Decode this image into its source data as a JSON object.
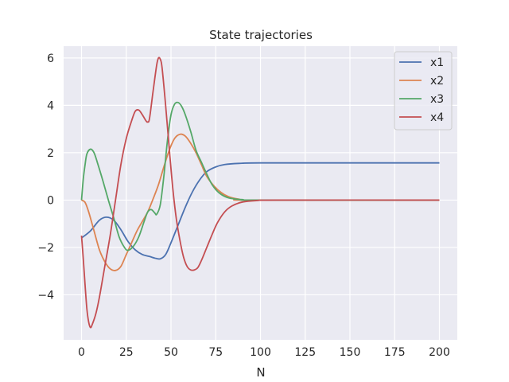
{
  "chart_data": {
    "type": "line",
    "title": "State trajectories",
    "xlabel": "N",
    "ylabel": "",
    "xlim": [
      -10,
      210
    ],
    "ylim": [
      -5.9,
      6.5
    ],
    "xticks": [
      0,
      25,
      50,
      75,
      100,
      125,
      150,
      175,
      200
    ],
    "yticks": [
      -4,
      -2,
      0,
      2,
      4,
      6
    ],
    "ytick_labels": [
      "−4",
      "−2",
      "0",
      "2",
      "4",
      "6"
    ],
    "grid": true,
    "background": "#eaeaf2",
    "legend_position": "top-right",
    "series": [
      {
        "name": "x1",
        "color": "#4c72b0",
        "points": [
          [
            0,
            -1.6
          ],
          [
            5,
            -1.3
          ],
          [
            10,
            -0.85
          ],
          [
            14,
            -0.72
          ],
          [
            18,
            -0.85
          ],
          [
            22,
            -1.25
          ],
          [
            26,
            -1.75
          ],
          [
            30,
            -2.1
          ],
          [
            34,
            -2.3
          ],
          [
            38,
            -2.38
          ],
          [
            41,
            -2.45
          ],
          [
            44,
            -2.48
          ],
          [
            47,
            -2.3
          ],
          [
            50,
            -1.8
          ],
          [
            54,
            -1.05
          ],
          [
            58,
            -0.3
          ],
          [
            62,
            0.35
          ],
          [
            66,
            0.85
          ],
          [
            70,
            1.2
          ],
          [
            75,
            1.4
          ],
          [
            80,
            1.5
          ],
          [
            88,
            1.55
          ],
          [
            100,
            1.57
          ],
          [
            150,
            1.57
          ],
          [
            200,
            1.57
          ]
        ]
      },
      {
        "name": "x2",
        "color": "#dd8452",
        "points": [
          [
            0,
            0.0
          ],
          [
            2,
            -0.1
          ],
          [
            4,
            -0.5
          ],
          [
            7,
            -1.3
          ],
          [
            10,
            -2.1
          ],
          [
            13,
            -2.6
          ],
          [
            16,
            -2.9
          ],
          [
            19,
            -2.97
          ],
          [
            22,
            -2.8
          ],
          [
            25,
            -2.3
          ],
          [
            28,
            -1.8
          ],
          [
            31,
            -1.3
          ],
          [
            34,
            -0.9
          ],
          [
            37,
            -0.5
          ],
          [
            40,
            0.05
          ],
          [
            43,
            0.65
          ],
          [
            46,
            1.4
          ],
          [
            49,
            2.1
          ],
          [
            52,
            2.6
          ],
          [
            55,
            2.78
          ],
          [
            58,
            2.7
          ],
          [
            61,
            2.4
          ],
          [
            64,
            2.0
          ],
          [
            67,
            1.5
          ],
          [
            70,
            1.0
          ],
          [
            74,
            0.6
          ],
          [
            78,
            0.32
          ],
          [
            82,
            0.15
          ],
          [
            88,
            0.04
          ],
          [
            95,
            0.0
          ],
          [
            200,
            0.0
          ]
        ]
      },
      {
        "name": "x3",
        "color": "#55a868",
        "points": [
          [
            0,
            0.0
          ],
          [
            1,
            0.9
          ],
          [
            2,
            1.5
          ],
          [
            3,
            1.95
          ],
          [
            5,
            2.15
          ],
          [
            7,
            2.0
          ],
          [
            9,
            1.55
          ],
          [
            12,
            0.8
          ],
          [
            15,
            0.0
          ],
          [
            18,
            -0.75
          ],
          [
            21,
            -1.55
          ],
          [
            24,
            -2.0
          ],
          [
            26,
            -2.12
          ],
          [
            29,
            -1.95
          ],
          [
            32,
            -1.55
          ],
          [
            35,
            -0.9
          ],
          [
            37,
            -0.5
          ],
          [
            39,
            -0.4
          ],
          [
            41,
            -0.55
          ],
          [
            42,
            -0.6
          ],
          [
            44,
            -0.2
          ],
          [
            46,
            1.0
          ],
          [
            48,
            2.5
          ],
          [
            50,
            3.6
          ],
          [
            52,
            4.05
          ],
          [
            54,
            4.12
          ],
          [
            56,
            3.95
          ],
          [
            58,
            3.6
          ],
          [
            61,
            2.9
          ],
          [
            64,
            2.1
          ],
          [
            67,
            1.6
          ],
          [
            70,
            1.1
          ],
          [
            73,
            0.65
          ],
          [
            77,
            0.3
          ],
          [
            82,
            0.1
          ],
          [
            90,
            0.02
          ],
          [
            100,
            0.0
          ],
          [
            200,
            0.0
          ]
        ]
      },
      {
        "name": "x4",
        "color": "#c44e52",
        "points": [
          [
            0,
            -1.5
          ],
          [
            1,
            -2.5
          ],
          [
            2,
            -3.6
          ],
          [
            3,
            -4.6
          ],
          [
            4,
            -5.15
          ],
          [
            5,
            -5.38
          ],
          [
            6,
            -5.25
          ],
          [
            8,
            -4.8
          ],
          [
            10,
            -4.1
          ],
          [
            13,
            -2.8
          ],
          [
            16,
            -1.5
          ],
          [
            19,
            0.0
          ],
          [
            22,
            1.5
          ],
          [
            25,
            2.6
          ],
          [
            28,
            3.35
          ],
          [
            30,
            3.75
          ],
          [
            32,
            3.8
          ],
          [
            34,
            3.6
          ],
          [
            36,
            3.35
          ],
          [
            37,
            3.3
          ],
          [
            38,
            3.45
          ],
          [
            40,
            4.6
          ],
          [
            42,
            5.7
          ],
          [
            43,
            6.0
          ],
          [
            44,
            5.95
          ],
          [
            45,
            5.6
          ],
          [
            47,
            4.0
          ],
          [
            49,
            2.2
          ],
          [
            51,
            0.5
          ],
          [
            53,
            -0.8
          ],
          [
            55,
            -1.7
          ],
          [
            57,
            -2.4
          ],
          [
            59,
            -2.8
          ],
          [
            61,
            -2.95
          ],
          [
            63,
            -2.95
          ],
          [
            65,
            -2.85
          ],
          [
            67,
            -2.55
          ],
          [
            70,
            -2.0
          ],
          [
            73,
            -1.45
          ],
          [
            76,
            -0.95
          ],
          [
            80,
            -0.5
          ],
          [
            84,
            -0.25
          ],
          [
            90,
            -0.08
          ],
          [
            98,
            -0.02
          ],
          [
            110,
            0.0
          ],
          [
            200,
            0.0
          ]
        ]
      }
    ]
  }
}
